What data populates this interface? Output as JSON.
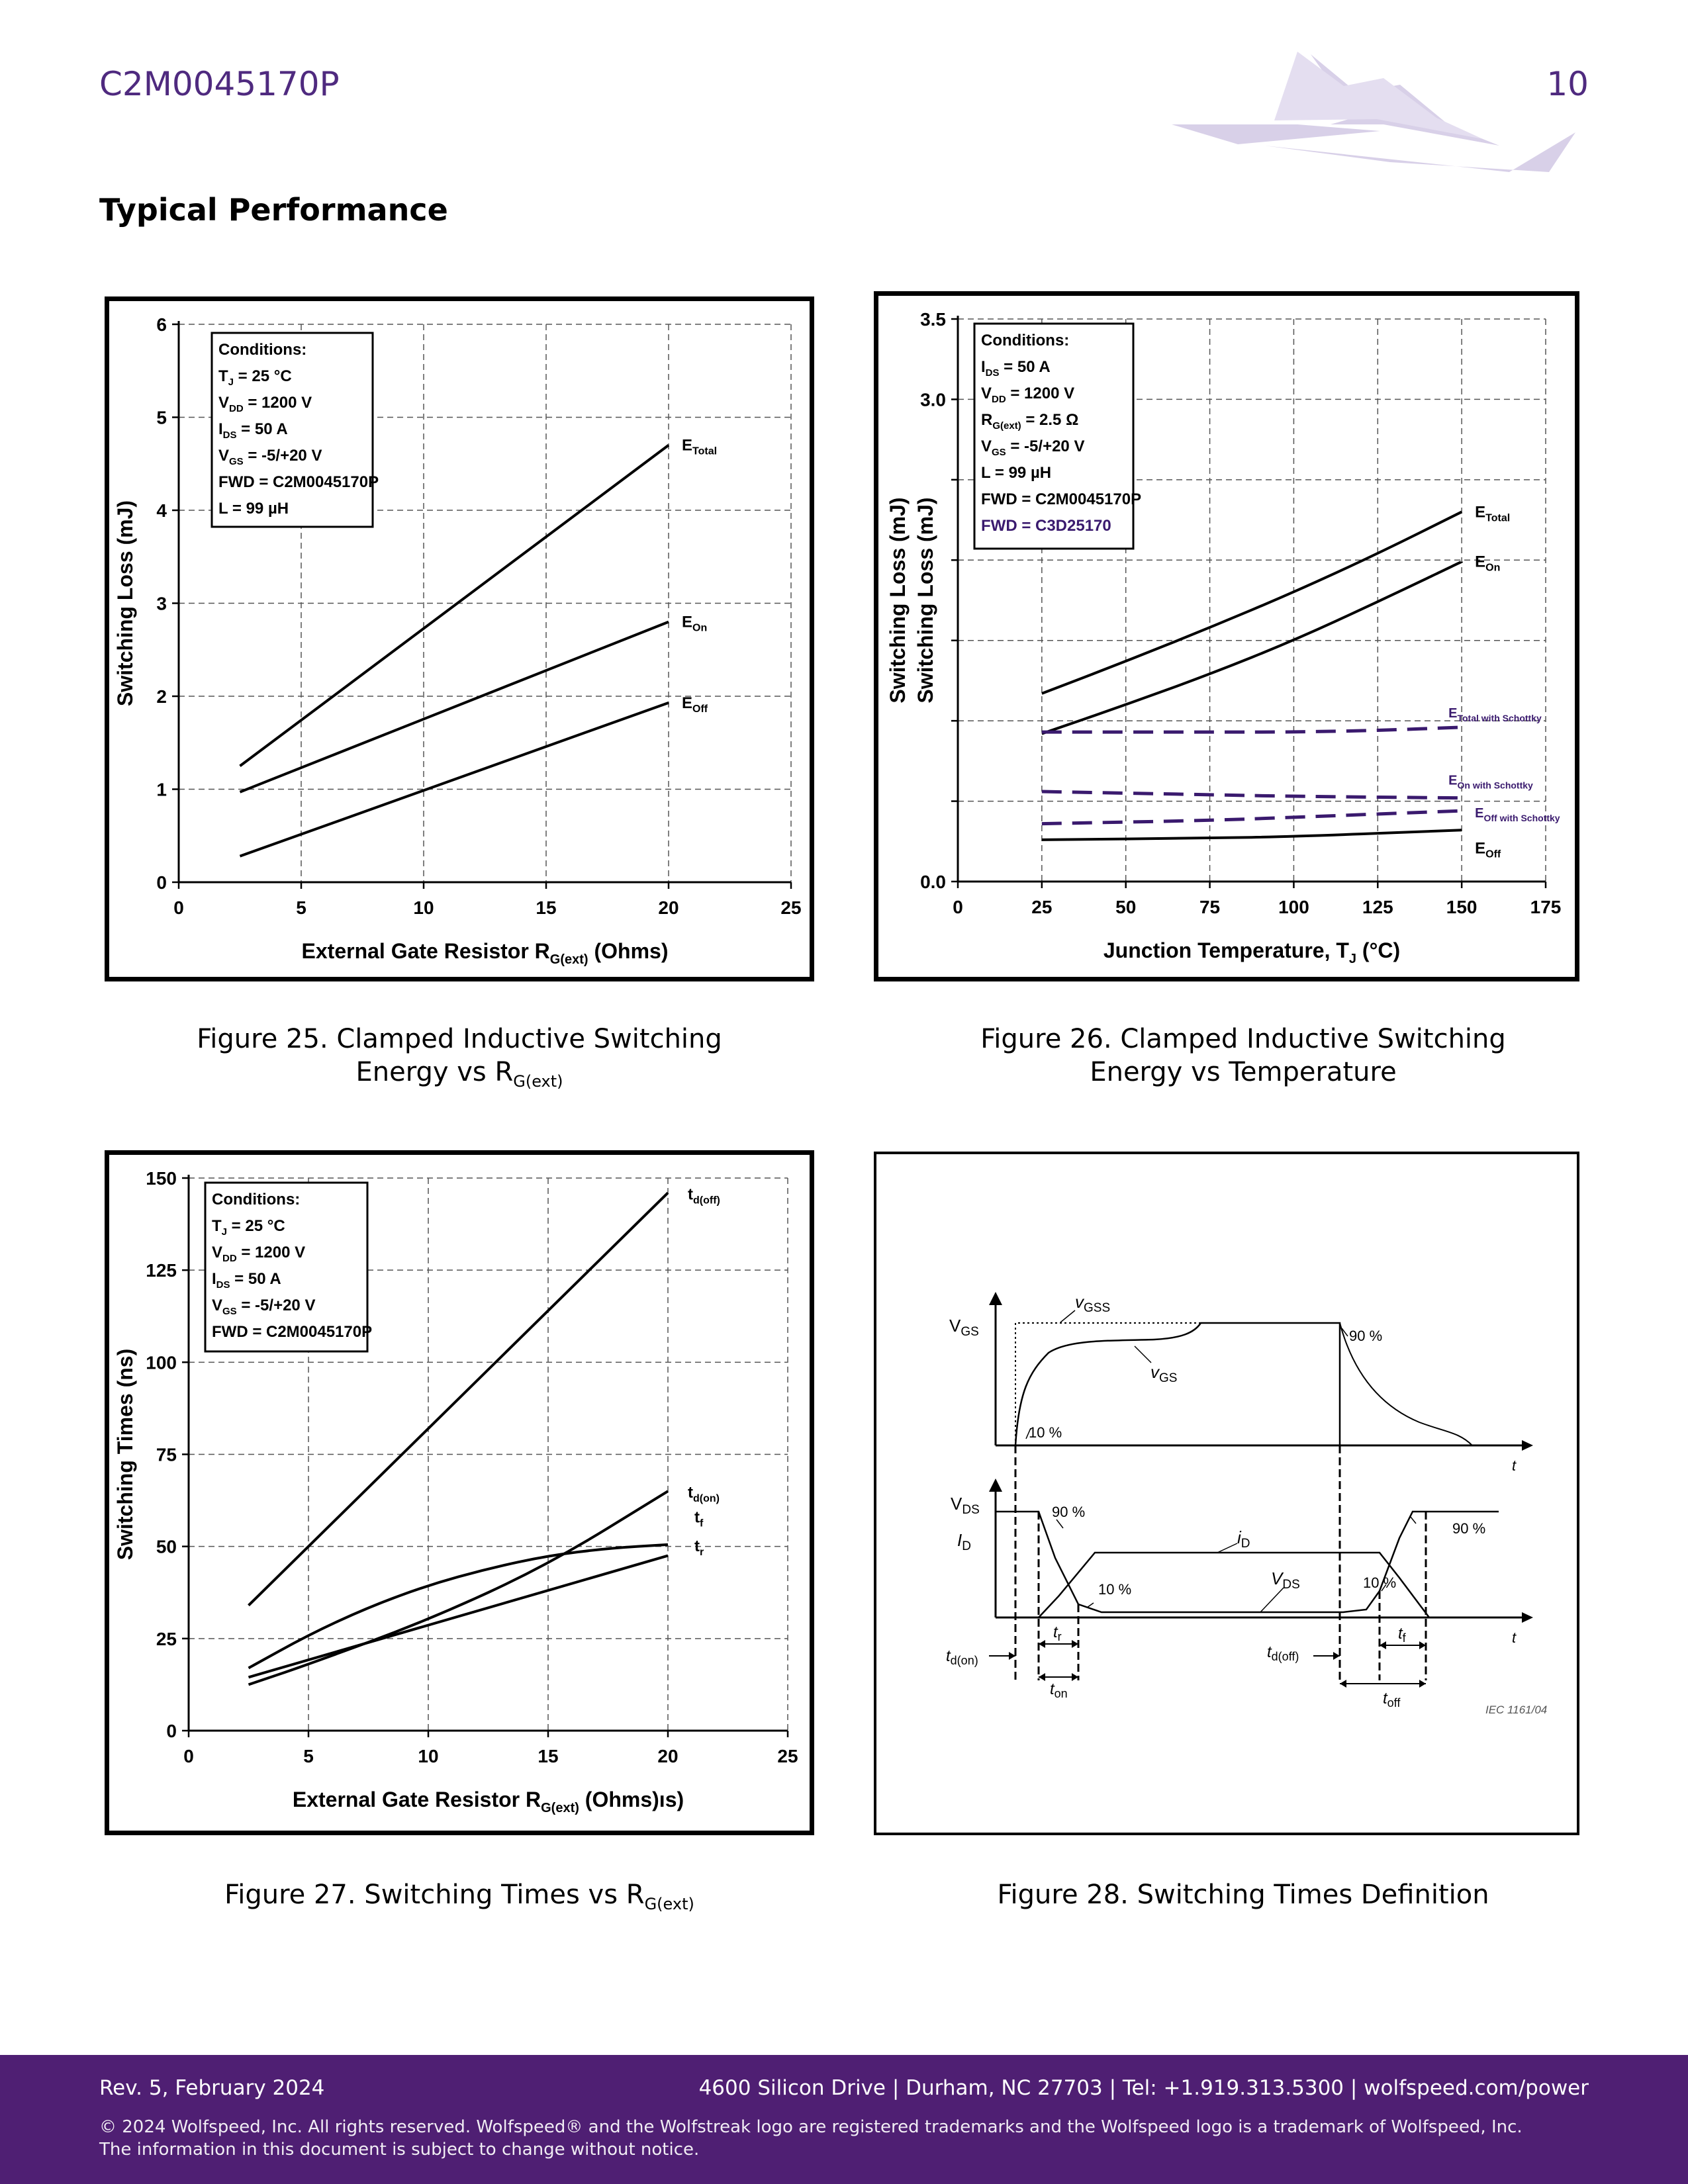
{
  "header": {
    "part_number": "C2M0045170P",
    "page_number": "10"
  },
  "section_title": "Typical Performance",
  "figures": [
    {
      "caption_line1": "Figure 25. Clamped Inductive Switching",
      "caption_line2_main": "Energy vs R",
      "caption_line2_sub": "G(ext)"
    },
    {
      "caption_line1": "Figure 26. Clamped Inductive Switching",
      "caption_line2_main": "Energy vs Temperature"
    },
    {
      "caption_line1": "Figure 27. Switching Times vs R",
      "caption_line1_sub": "G(ext)"
    },
    {
      "caption_line1": "Figure 28. Switching Times Definition"
    }
  ],
  "chart_data": [
    {
      "type": "line",
      "xlabel": "External Gate Resistor R",
      "xlabel_sub": "G(ext)",
      "xlabel_suffix": " (Ohms)",
      "ylabel": "Switching Loss (mJ)",
      "xlim": [
        0,
        25
      ],
      "ylim": [
        0,
        6
      ],
      "x_ticks": [
        0,
        5,
        10,
        15,
        20,
        25
      ],
      "y_ticks": [
        0,
        1,
        2,
        3,
        4,
        5,
        6
      ],
      "grid": true,
      "conditions": [
        "Conditions:",
        "T_J = 25 °C",
        "V_DD = 1200 V",
        "I_DS = 50 A",
        "V_GS = -5/+20 V",
        "FWD = C2M0045170P",
        "L = 99 µH"
      ],
      "series": [
        {
          "name": "E_Total",
          "x": [
            2.5,
            20
          ],
          "y": [
            1.25,
            4.7
          ],
          "color": "#000000",
          "dash": false
        },
        {
          "name": "E_On",
          "x": [
            2.5,
            20
          ],
          "y": [
            0.97,
            2.8
          ],
          "color": "#000000",
          "dash": false
        },
        {
          "name": "E_Off",
          "x": [
            2.5,
            20
          ],
          "y": [
            0.28,
            1.93
          ],
          "color": "#000000",
          "dash": false
        }
      ]
    },
    {
      "type": "line",
      "xlabel": "Junction Temperature, T",
      "xlabel_sub": "J",
      "xlabel_suffix": " (°C)",
      "ylabel": "Switching Loss (mJ)",
      "ylabel2": "Switching Loss (mJ)",
      "xlim": [
        0,
        175
      ],
      "ylim": [
        0,
        3.5
      ],
      "x_ticks": [
        0,
        25,
        50,
        75,
        100,
        125,
        150,
        175
      ],
      "y_tick_labels": [
        "0.0",
        "",
        "",
        "",
        "",
        "",
        "3.0",
        "3.5"
      ],
      "y_ticks": [
        0,
        0.5,
        1.0,
        1.5,
        2.0,
        2.5,
        3.0,
        3.5
      ],
      "grid": true,
      "conditions": [
        "Conditions:",
        "I_DS = 50 A",
        "V_DD = 1200 V",
        "R_G(ext) = 2.5 Ω",
        "V_GS = -5/+20 V",
        "L = 99 µH",
        "FWD = C2M0045170P",
        "FWD = C3D25170"
      ],
      "series": [
        {
          "name": "E_Total",
          "x": [
            25,
            50,
            75,
            100,
            125,
            150
          ],
          "y": [
            1.17,
            1.37,
            1.58,
            1.8,
            2.04,
            2.3
          ],
          "color": "#000000",
          "dash": false
        },
        {
          "name": "E_On",
          "x": [
            25,
            50,
            75,
            100,
            125,
            150
          ],
          "y": [
            0.92,
            1.1,
            1.29,
            1.5,
            1.74,
            1.99
          ],
          "color": "#000000",
          "dash": false
        },
        {
          "name": "E_Total with Schottky",
          "x": [
            25,
            75,
            100,
            125,
            150
          ],
          "y": [
            0.93,
            0.93,
            0.93,
            0.94,
            0.96
          ],
          "color": "#3a1a6e",
          "dash": true
        },
        {
          "name": "E_On with Schottky",
          "x": [
            25,
            75,
            100,
            150
          ],
          "y": [
            0.56,
            0.54,
            0.53,
            0.52
          ],
          "color": "#3a1a6e",
          "dash": true
        },
        {
          "name": "E_Off with Schottky",
          "x": [
            25,
            75,
            100,
            150
          ],
          "y": [
            0.36,
            0.38,
            0.4,
            0.44
          ],
          "color": "#3a1a6e",
          "dash": true
        },
        {
          "name": "E_Off",
          "x": [
            25,
            75,
            100,
            150
          ],
          "y": [
            0.26,
            0.27,
            0.28,
            0.32
          ],
          "color": "#000000",
          "dash": false
        }
      ]
    },
    {
      "type": "line",
      "xlabel": "External Gate Resistor R",
      "xlabel_sub": "G(ext)",
      "xlabel_suffix": " (Ohms)",
      "xlabel_stray": "ıs)",
      "ylabel": "Switching Times (ns)",
      "xlim": [
        0,
        25
      ],
      "ylim": [
        0,
        150
      ],
      "x_ticks": [
        0,
        5,
        10,
        15,
        20,
        25
      ],
      "y_ticks": [
        0,
        25,
        50,
        75,
        100,
        125,
        150
      ],
      "grid": true,
      "conditions": [
        "Conditions:",
        "T_J = 25 °C",
        "V_DD = 1200 V",
        "I_DS = 50 A",
        "V_GS = -5/+20 V",
        "FWD = C2M0045170P"
      ],
      "series": [
        {
          "name": "t_d(off)",
          "x": [
            2.5,
            20
          ],
          "y": [
            34,
            146
          ],
          "color": "#000000"
        },
        {
          "name": "t_d(on)",
          "x": [
            2.5,
            5,
            10,
            15,
            20
          ],
          "y": [
            12.5,
            18,
            30,
            45,
            65
          ],
          "color": "#000000"
        },
        {
          "name": "t_r",
          "x": [
            2.5,
            5,
            7.5,
            10,
            12.5,
            15,
            17.5,
            20
          ],
          "y": [
            17,
            26,
            33.5,
            39.5,
            44,
            47.5,
            49.5,
            50.5
          ],
          "color": "#000000"
        },
        {
          "name": "t_f",
          "x": [
            2.5,
            20
          ],
          "y": [
            14.5,
            47.5
          ],
          "color": "#000000"
        }
      ],
      "series_label_positions": {}
    }
  ],
  "diagram28": {
    "labels": {
      "vgs_axis": "V",
      "vgs_axis_sub": "GS",
      "vgss": "v",
      "vgss_sub": "GSS",
      "vgs_curve": "v",
      "vgs_curve_sub": "GS",
      "p90_top": "90 %",
      "p10_top": "10 %",
      "vds_axis": "V",
      "vds_axis_sub": "DS",
      "id_axis": "I",
      "id_axis_sub": "D",
      "id_curve": "i",
      "id_curve_sub": "D",
      "vds_curve": "V",
      "vds_curve_sub": "DS",
      "p90_left": "90 %",
      "p10_mid": "10 %",
      "p10_right": "10 %",
      "p90_right": "90 %",
      "t_axis": "t",
      "tr": "t",
      "tr_sub": "r",
      "tf": "t",
      "tf_sub": "f",
      "tdon": "t",
      "tdon_sub": "d(on)",
      "ton": "t",
      "ton_sub": "on",
      "tdoff": "t",
      "tdoff_sub": "d(off)",
      "toff": "t",
      "toff_sub": "off",
      "iec": "IEC    1161/04"
    }
  },
  "footer": {
    "revision": "Rev. 5, February 2024",
    "address": "4600 Silicon Drive  |  Durham, NC 27703  |  Tel: +1.919.313.5300  |  wolfspeed.com/power",
    "copyright_line1": "© 2024 Wolfspeed, Inc. All rights reserved. Wolfspeed® and the Wolfstreak logo are registered trademarks and the Wolfspeed logo is a trademark of Wolfspeed, Inc.",
    "copyright_line2": "The information in this document is subject to change without notice."
  }
}
